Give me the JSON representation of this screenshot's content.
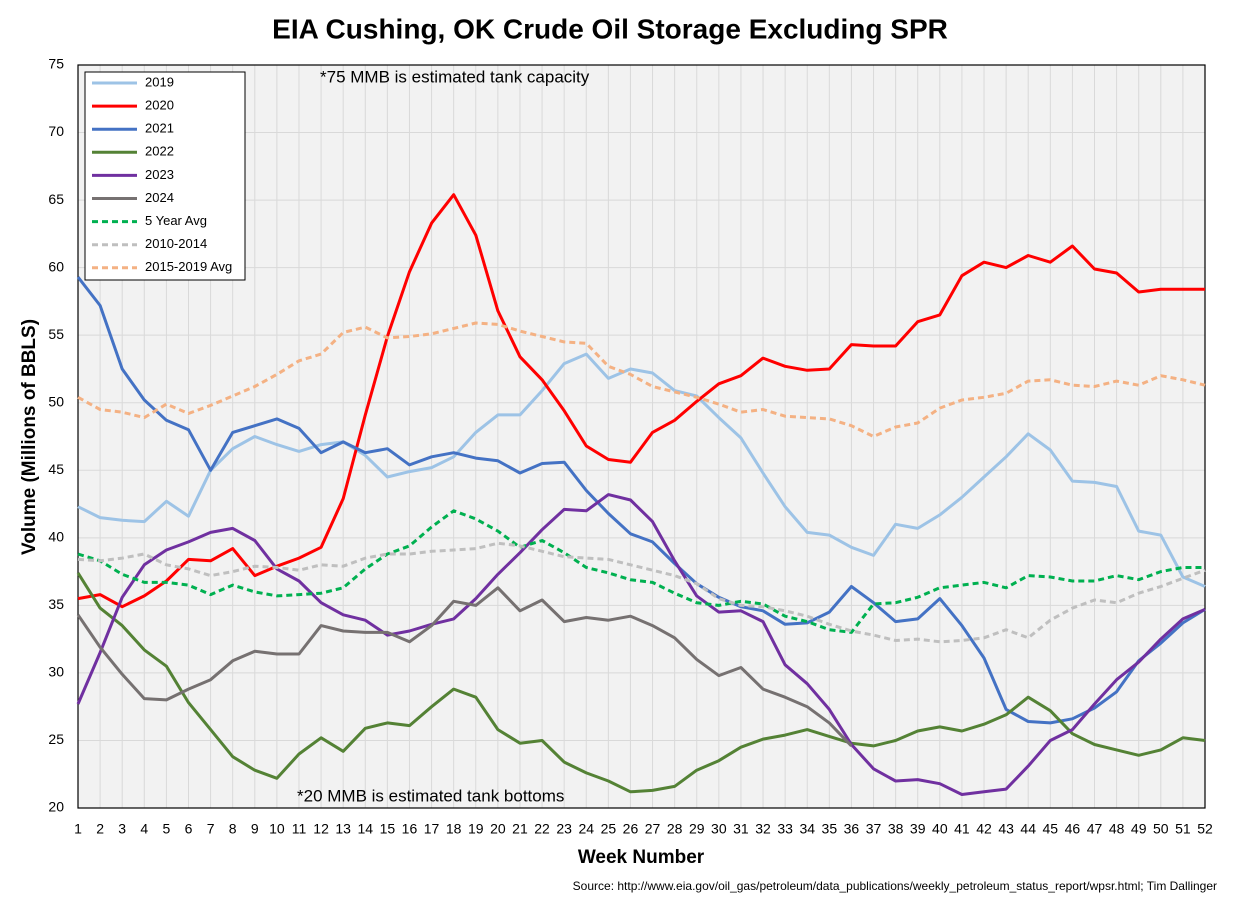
{
  "chart_data": {
    "type": "line",
    "title": "EIA Cushing, OK Crude Oil Storage Excluding SPR",
    "y_label": "Volume (Millions of BBLS)",
    "x_label": "Week Number",
    "annotations": [
      "*75 MMB is estimated tank capacity",
      "*20 MMB is estimated tank bottoms"
    ],
    "source": "Source: http://www.eia.gov/oil_gas/petroleum/data_publications/weekly_petroleum_status_report/wpsr.html; Tim Dallinger",
    "x": [
      1,
      2,
      3,
      4,
      5,
      6,
      7,
      8,
      9,
      10,
      11,
      12,
      13,
      14,
      15,
      16,
      17,
      18,
      19,
      20,
      21,
      22,
      23,
      24,
      25,
      26,
      27,
      28,
      29,
      30,
      31,
      32,
      33,
      34,
      35,
      36,
      37,
      38,
      39,
      40,
      41,
      42,
      43,
      44,
      45,
      46,
      47,
      48,
      49,
      50,
      51,
      52
    ],
    "xlim": [
      1,
      52
    ],
    "ylim": [
      20,
      75
    ],
    "yticks": [
      20,
      25,
      30,
      35,
      40,
      45,
      50,
      55,
      60,
      65,
      70,
      75
    ],
    "grid": true,
    "legend": "upper left",
    "series": [
      {
        "name": "2019",
        "color": "#9dc3e6",
        "dashed": false,
        "values": [
          42.3,
          41.5,
          41.3,
          41.2,
          42.7,
          41.6,
          45.0,
          46.6,
          47.5,
          46.9,
          46.4,
          46.9,
          47.1,
          46.1,
          44.5,
          44.9,
          45.2,
          46.0,
          47.8,
          49.1,
          49.1,
          50.9,
          52.9,
          53.6,
          51.8,
          52.5,
          52.2,
          50.9,
          50.5,
          48.9,
          47.4,
          44.8,
          42.3,
          40.4,
          40.2,
          39.3,
          38.7,
          41.0,
          40.7,
          41.7,
          43.0,
          44.5,
          46.0,
          47.7,
          46.5,
          44.2,
          44.1,
          43.8,
          40.5,
          40.2,
          37.1,
          36.4
        ]
      },
      {
        "name": "2020",
        "color": "#ff0000",
        "dashed": false,
        "values": [
          35.5,
          35.8,
          34.9,
          35.7,
          36.8,
          38.4,
          38.3,
          39.2,
          37.2,
          37.9,
          38.5,
          39.3,
          42.9,
          49.1,
          54.9,
          59.7,
          63.3,
          65.4,
          62.4,
          56.8,
          53.4,
          51.7,
          49.4,
          46.8,
          45.8,
          45.6,
          47.8,
          48.7,
          50.1,
          51.4,
          52.0,
          53.3,
          52.7,
          52.4,
          52.5,
          54.3,
          54.2,
          54.2,
          56.0,
          56.5,
          59.4,
          60.4,
          60.0,
          60.9,
          60.4,
          61.6,
          59.9,
          59.6,
          58.2,
          58.4,
          58.4,
          58.4
        ]
      },
      {
        "name": "2021",
        "color": "#4472c4",
        "dashed": false,
        "values": [
          59.3,
          57.2,
          52.5,
          50.2,
          48.7,
          48.0,
          45.0,
          47.8,
          48.3,
          48.8,
          48.1,
          46.3,
          47.1,
          46.3,
          46.6,
          45.4,
          46.0,
          46.3,
          45.9,
          45.7,
          44.8,
          45.5,
          45.6,
          43.5,
          41.8,
          40.3,
          39.7,
          38.1,
          36.6,
          35.6,
          34.9,
          34.6,
          33.6,
          33.7,
          34.5,
          36.4,
          35.2,
          33.8,
          34.0,
          35.5,
          33.5,
          31.1,
          27.3,
          26.4,
          26.3,
          26.6,
          27.4,
          28.6,
          30.9,
          32.2,
          33.7,
          34.7
        ]
      },
      {
        "name": "2022",
        "color": "#548235",
        "dashed": false,
        "values": [
          37.4,
          34.8,
          33.5,
          31.7,
          30.5,
          27.8,
          25.8,
          23.8,
          22.8,
          22.2,
          24.0,
          25.2,
          24.2,
          25.9,
          26.3,
          26.1,
          27.5,
          28.8,
          28.2,
          25.8,
          24.8,
          25.0,
          23.4,
          22.6,
          22.0,
          21.2,
          21.3,
          21.6,
          22.8,
          23.5,
          24.5,
          25.1,
          25.4,
          25.8,
          25.3,
          24.8,
          24.6,
          25.0,
          25.7,
          26.0,
          25.7,
          26.2,
          26.9,
          28.2,
          27.2,
          25.5,
          24.7,
          24.3,
          23.9,
          24.3,
          25.2,
          25.0
        ]
      },
      {
        "name": "2023",
        "color": "#7030a0",
        "dashed": false,
        "values": [
          27.7,
          31.5,
          35.6,
          38.0,
          39.1,
          39.7,
          40.4,
          40.7,
          39.8,
          37.7,
          36.8,
          35.2,
          34.3,
          33.9,
          32.8,
          33.1,
          33.6,
          34.0,
          35.5,
          37.3,
          38.9,
          40.6,
          42.1,
          42.0,
          43.2,
          42.8,
          41.2,
          38.3,
          35.7,
          34.5,
          34.6,
          33.8,
          30.6,
          29.2,
          27.3,
          24.7,
          22.9,
          22.0,
          22.1,
          21.8,
          21.0,
          21.2,
          21.4,
          23.1,
          25.0,
          25.8,
          27.7,
          29.5,
          30.8,
          32.5,
          34.0,
          34.7
        ]
      },
      {
        "name": "2024",
        "color": "#767171",
        "dashed": false,
        "values": [
          34.3,
          31.9,
          29.9,
          28.1,
          28.0,
          28.8,
          29.5,
          30.9,
          31.6,
          31.4,
          31.4,
          33.5,
          33.1,
          33.0,
          33.0,
          32.3,
          33.5,
          35.3,
          35.0,
          36.3,
          34.6,
          35.4,
          33.8,
          34.1,
          33.9,
          34.2,
          33.5,
          32.6,
          31.0,
          29.8,
          30.4,
          28.8,
          28.2,
          27.5,
          26.3,
          24.6,
          null,
          null,
          null,
          null,
          null,
          null,
          null,
          null,
          null,
          null,
          null,
          null,
          null,
          null,
          null,
          null
        ]
      },
      {
        "name": "5 Year Avg",
        "color": "#00b050",
        "dashed": true,
        "values": [
          38.8,
          38.3,
          37.3,
          36.7,
          36.7,
          36.5,
          35.8,
          36.5,
          36.0,
          35.7,
          35.8,
          35.9,
          36.3,
          37.7,
          38.8,
          39.4,
          40.8,
          42.0,
          41.4,
          40.5,
          39.3,
          39.8,
          38.9,
          37.8,
          37.4,
          36.9,
          36.7,
          35.9,
          35.2,
          35.0,
          35.3,
          35.1,
          34.2,
          33.8,
          33.2,
          33.0,
          35.1,
          35.2,
          35.6,
          36.3,
          36.5,
          36.7,
          36.3,
          37.2,
          37.1,
          36.8,
          36.8,
          37.2,
          36.9,
          37.5,
          37.8,
          37.8
        ]
      },
      {
        "name": "2010-2014",
        "color": "#bfbfbf",
        "dashed": true,
        "values": [
          38.4,
          38.3,
          38.5,
          38.8,
          38.0,
          37.7,
          37.2,
          37.5,
          37.9,
          37.8,
          37.6,
          38.0,
          37.9,
          38.5,
          38.8,
          38.8,
          39.0,
          39.1,
          39.2,
          39.6,
          39.4,
          39.0,
          38.6,
          38.5,
          38.4,
          38.0,
          37.6,
          37.2,
          36.6,
          35.5,
          35.0,
          34.9,
          34.6,
          34.2,
          33.6,
          33.1,
          32.8,
          32.4,
          32.5,
          32.3,
          32.4,
          32.6,
          33.2,
          32.6,
          33.9,
          34.8,
          35.4,
          35.2,
          35.9,
          36.4,
          37.0,
          37.6
        ]
      },
      {
        "name": "2015-2019 Avg",
        "color": "#f4b183",
        "dashed": true,
        "values": [
          50.4,
          49.5,
          49.3,
          48.9,
          49.9,
          49.2,
          49.8,
          50.5,
          51.2,
          52.1,
          53.1,
          53.6,
          55.2,
          55.6,
          54.8,
          54.9,
          55.1,
          55.5,
          55.9,
          55.8,
          55.3,
          54.9,
          54.5,
          54.4,
          52.7,
          52.1,
          51.2,
          50.8,
          50.4,
          49.9,
          49.3,
          49.5,
          49.0,
          48.9,
          48.8,
          48.3,
          47.5,
          48.2,
          48.5,
          49.6,
          50.2,
          50.4,
          50.7,
          51.6,
          51.7,
          51.3,
          51.2,
          51.6,
          51.3,
          52.0,
          51.7,
          51.3
        ]
      }
    ]
  }
}
